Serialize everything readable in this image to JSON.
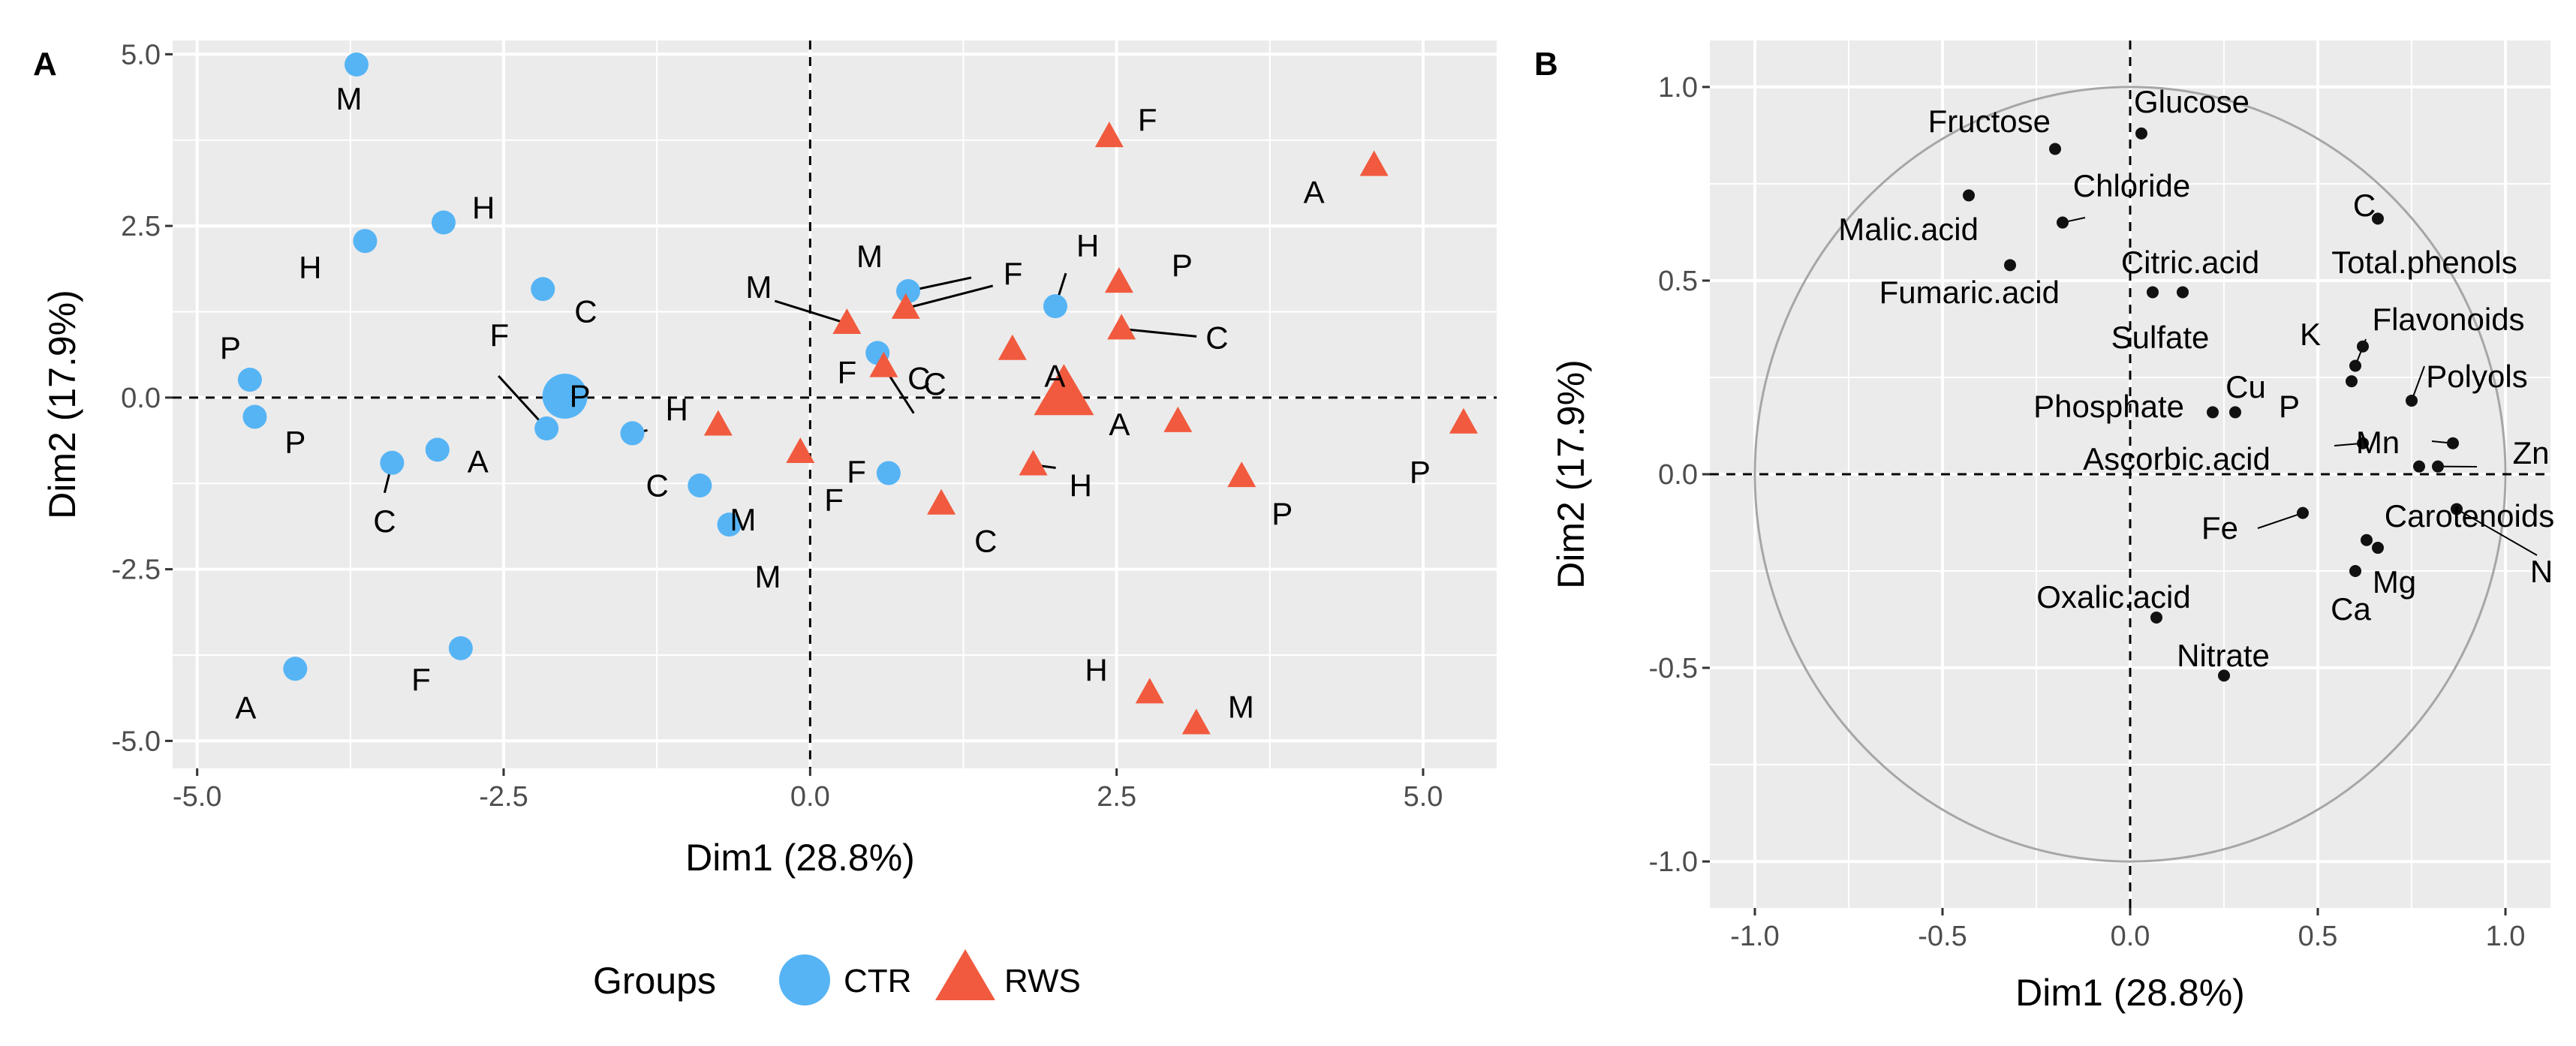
{
  "panel_a": {
    "letter": "A",
    "xlabel": "Dim1 (28.8%)",
    "ylabel": "Dim2 (17.9%)",
    "xticks": [
      "-5.0",
      "-2.5",
      "0.0",
      "2.5",
      "5.0"
    ],
    "yticks": [
      "5.0",
      "2.5",
      "0.0",
      "-2.5",
      "-5.0"
    ],
    "legend": {
      "title": "Groups",
      "ctr": "CTR",
      "rws": "RWS"
    }
  },
  "panel_b": {
    "letter": "B",
    "xlabel": "Dim1 (28.8%)",
    "ylabel": "Dim2 (17.9%)",
    "xticks": [
      "-1.0",
      "-0.5",
      "0.0",
      "0.5",
      "1.0"
    ],
    "yticks": [
      "1.0",
      "0.5",
      "0.0",
      "-0.5",
      "-1.0"
    ]
  },
  "colors": {
    "panel_bg": "#ebebeb",
    "grid": "#ffffff",
    "ctr": "#56b4f5",
    "rws": "#f15a3e",
    "point": "#111111",
    "circle": "#a6a6a6",
    "tick_text": "#4d4d4d"
  },
  "chart_data": [
    {
      "type": "scatter",
      "title": "A",
      "xlabel": "Dim1 (28.8%)",
      "ylabel": "Dim2 (17.9%)",
      "xlim": [
        -5.2,
        5.6
      ],
      "ylim": [
        -5.4,
        5.2
      ],
      "grid": true,
      "legend_position": "bottom",
      "reference_lines": [
        0,
        0
      ],
      "series": [
        {
          "name": "CTR",
          "marker": "circle",
          "color": "#56b4f5",
          "points": [
            {
              "x": -3.7,
              "y": 4.85,
              "label": "M"
            },
            {
              "x": -2.99,
              "y": 2.55,
              "label": "H"
            },
            {
              "x": -3.63,
              "y": 2.28,
              "label": "H"
            },
            {
              "x": -2.18,
              "y": 1.58,
              "label": "C"
            },
            {
              "x": -4.57,
              "y": 0.26,
              "label": "P"
            },
            {
              "x": -4.53,
              "y": -0.28,
              "label": "P"
            },
            {
              "x": -2.15,
              "y": -0.45,
              "label": "F"
            },
            {
              "x": -1.45,
              "y": -0.52,
              "label": "C"
            },
            {
              "x": -3.04,
              "y": -0.76,
              "label": "A"
            },
            {
              "x": -3.41,
              "y": -0.95,
              "label": "C"
            },
            {
              "x": -0.9,
              "y": -1.28,
              "label": "M"
            },
            {
              "x": -0.66,
              "y": -1.85,
              "label": "M"
            },
            {
              "x": -4.2,
              "y": -3.95,
              "label": "A"
            },
            {
              "x": -2.85,
              "y": -3.65,
              "label": "F"
            },
            {
              "x": 0.8,
              "y": 1.55,
              "label": "M"
            },
            {
              "x": 2.0,
              "y": 1.33,
              "label": "H"
            },
            {
              "x": 0.55,
              "y": 0.65,
              "label": "C"
            },
            {
              "x": 0.64,
              "y": -1.1,
              "label": "F"
            }
          ],
          "centroid": {
            "x": -2.0,
            "y": 0.02,
            "label": "P"
          }
        },
        {
          "name": "RWS",
          "marker": "triangle",
          "color": "#f15a3e",
          "points": [
            {
              "x": 2.44,
              "y": 3.8,
              "label": "F"
            },
            {
              "x": 4.6,
              "y": 3.38,
              "label": "A"
            },
            {
              "x": 2.52,
              "y": 1.68,
              "label": "P"
            },
            {
              "x": 0.78,
              "y": 1.3,
              "label": "F"
            },
            {
              "x": 0.3,
              "y": 1.08,
              "label": "M"
            },
            {
              "x": 2.54,
              "y": 1.0,
              "label": "C"
            },
            {
              "x": 1.65,
              "y": 0.7,
              "label": "C"
            },
            {
              "x": 0.6,
              "y": 0.45,
              "label": "F"
            },
            {
              "x": -0.75,
              "y": -0.4,
              "label": "H"
            },
            {
              "x": -0.08,
              "y": -0.8,
              "label": "F"
            },
            {
              "x": 3.0,
              "y": -0.35,
              "label": "A"
            },
            {
              "x": 5.33,
              "y": -0.37,
              "label": "P"
            },
            {
              "x": 1.82,
              "y": -0.98,
              "label": "H"
            },
            {
              "x": 3.52,
              "y": -1.15,
              "label": "P"
            },
            {
              "x": 1.07,
              "y": -1.55,
              "label": "C"
            },
            {
              "x": 2.77,
              "y": -4.3,
              "label": "H"
            },
            {
              "x": 3.15,
              "y": -4.75,
              "label": "M"
            }
          ],
          "centroid": {
            "x": 2.07,
            "y": 0.05,
            "label": "A"
          }
        }
      ]
    },
    {
      "type": "scatter",
      "subtype": "correlation-circle",
      "title": "B",
      "xlabel": "Dim1 (28.8%)",
      "ylabel": "Dim2 (17.9%)",
      "xlim": [
        -1.12,
        1.12
      ],
      "ylim": [
        -1.12,
        1.12
      ],
      "grid": true,
      "unit_circle": true,
      "points": [
        {
          "x": 0.03,
          "y": 0.88,
          "label": "Glucose"
        },
        {
          "x": -0.2,
          "y": 0.84,
          "label": "Fructose"
        },
        {
          "x": -0.43,
          "y": 0.72,
          "label": "Malic.acid"
        },
        {
          "x": -0.18,
          "y": 0.65,
          "label": "Chloride"
        },
        {
          "x": 0.66,
          "y": 0.66,
          "label": "C"
        },
        {
          "x": -0.32,
          "y": 0.54,
          "label": "Fumaric.acid"
        },
        {
          "x": 0.06,
          "y": 0.47,
          "label": "Citric.acid"
        },
        {
          "x": 0.14,
          "y": 0.47,
          "label": "Sulfate"
        },
        {
          "x": 0.62,
          "y": 0.33,
          "label": "Total.phenols"
        },
        {
          "x": 0.6,
          "y": 0.28,
          "label": "K"
        },
        {
          "x": 0.59,
          "y": 0.24,
          "label": "P"
        },
        {
          "x": 0.75,
          "y": 0.19,
          "label": "Flavonoids"
        },
        {
          "x": 0.22,
          "y": 0.16,
          "label": "Phosphate"
        },
        {
          "x": 0.28,
          "y": 0.16,
          "label": "Cu"
        },
        {
          "x": 0.62,
          "y": 0.08,
          "label": "Ascorbic.acid"
        },
        {
          "x": 0.86,
          "y": 0.08,
          "label": "Polyols"
        },
        {
          "x": 0.77,
          "y": 0.02,
          "label": "Mn"
        },
        {
          "x": 0.82,
          "y": 0.02,
          "label": "Zn"
        },
        {
          "x": 0.87,
          "y": -0.09,
          "label": "N"
        },
        {
          "x": 0.46,
          "y": -0.1,
          "label": "Fe"
        },
        {
          "x": 0.63,
          "y": -0.17,
          "label": "Carotenoids"
        },
        {
          "x": 0.66,
          "y": -0.19,
          "label": "Mg"
        },
        {
          "x": 0.6,
          "y": -0.25,
          "label": "Ca"
        },
        {
          "x": 0.07,
          "y": -0.37,
          "label": "Oxalic.acid"
        },
        {
          "x": 0.25,
          "y": -0.52,
          "label": "Nitrate"
        }
      ]
    }
  ]
}
